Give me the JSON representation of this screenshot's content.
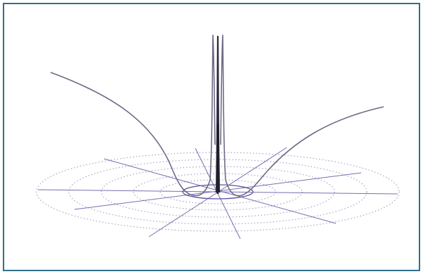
{
  "figure": {
    "kind": "3D surface line plot over polar grid",
    "labels": [],
    "colors": {
      "frame_border": "#2f6f8c",
      "grid_rings": "#a9a3c6",
      "grid_spokes": "#5f57a0",
      "curve": "#6f6a86",
      "central_spike": "#2b2b3a"
    }
  }
}
